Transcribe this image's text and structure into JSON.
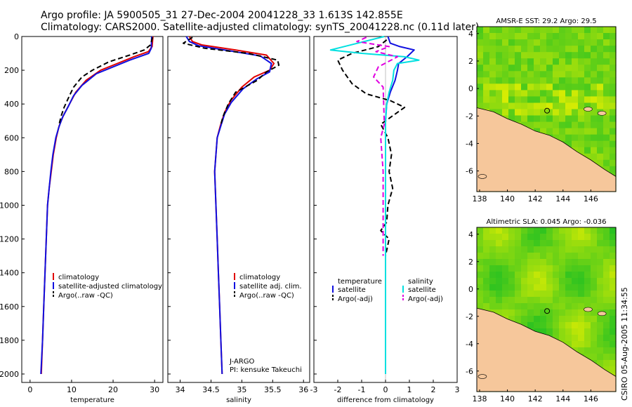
{
  "header": {
    "line1": "Argo profile: JA 5900505_31 27-Dec-2004 20041228_33 1.613S 142.855E",
    "line2": "Climatology: CARS2000. Satellite-adjusted climatology: synTS_20041228.nc (0.11d later)"
  },
  "footer": {
    "stamp": "CSIRO 05-Aug-2005 11:34:55"
  },
  "colors": {
    "climatology": "#e00000",
    "satellite": "#1010e0",
    "argo": "#000000",
    "salinity_satellite": "#00e0e0",
    "salinity_argo": "#e000e0",
    "land": "#f6c79b",
    "sea_green": "#22c022",
    "sea_yellow": "#e8f000"
  },
  "chart_data": [
    {
      "type": "line",
      "name": "temperature",
      "xlabel": "temperature",
      "ylabel": "",
      "xlim": [
        -2,
        32
      ],
      "ylim": [
        2050,
        0
      ],
      "xticks": [
        0,
        10,
        20,
        30
      ],
      "yticks": [
        0,
        200,
        400,
        600,
        800,
        1000,
        1200,
        1400,
        1600,
        1800,
        2000
      ],
      "legend": [
        "climatology",
        "satellite-adjusted climatology",
        "Argo(..raw -QC)"
      ],
      "series": [
        {
          "name": "climatology",
          "style": "solid",
          "points": [
            [
              29.6,
              0
            ],
            [
              29.4,
              60
            ],
            [
              28.5,
              90
            ],
            [
              25,
              120
            ],
            [
              21,
              160
            ],
            [
              17,
              200
            ],
            [
              13.5,
              260
            ],
            [
              11,
              330
            ],
            [
              9.5,
              400
            ],
            [
              8,
              470
            ],
            [
              7,
              530
            ],
            [
              6.3,
              600
            ],
            [
              5.6,
              700
            ],
            [
              5.1,
              800
            ],
            [
              4.6,
              900
            ],
            [
              4.2,
              1000
            ],
            [
              3.9,
              1200
            ],
            [
              3.6,
              1400
            ],
            [
              3.3,
              1600
            ],
            [
              3,
              1800
            ],
            [
              2.7,
              2000
            ]
          ]
        },
        {
          "name": "satellite-adjusted climatology",
          "style": "solid",
          "points": [
            [
              29.3,
              0
            ],
            [
              29.2,
              70
            ],
            [
              28.6,
              100
            ],
            [
              24,
              140
            ],
            [
              20,
              180
            ],
            [
              16,
              220
            ],
            [
              12.5,
              290
            ],
            [
              10.5,
              350
            ],
            [
              9.3,
              410
            ],
            [
              7.8,
              480
            ],
            [
              6.9,
              540
            ],
            [
              6.2,
              600
            ],
            [
              5.5,
              700
            ],
            [
              5,
              800
            ],
            [
              4.6,
              900
            ],
            [
              4.2,
              1000
            ],
            [
              3.9,
              1200
            ],
            [
              3.6,
              1400
            ],
            [
              3.3,
              1600
            ],
            [
              3,
              1800
            ],
            [
              2.6,
              2000
            ]
          ]
        },
        {
          "name": "Argo(..raw -QC)",
          "style": "dashed",
          "points": [
            [
              29.5,
              5
            ],
            [
              29,
              50
            ],
            [
              27.5,
              80
            ],
            [
              24,
              110
            ],
            [
              19,
              150
            ],
            [
              15,
              200
            ],
            [
              12.5,
              240
            ],
            [
              10.5,
              300
            ],
            [
              9.5,
              350
            ],
            [
              8.2,
              420
            ],
            [
              7.5,
              470
            ],
            [
              7,
              520
            ]
          ]
        }
      ]
    },
    {
      "type": "line",
      "name": "salinity",
      "xlabel": "salinity",
      "ylabel": "",
      "xlim": [
        33.8,
        36.1
      ],
      "ylim": [
        2050,
        0
      ],
      "xticks": [
        34,
        34.5,
        35,
        35.5,
        36
      ],
      "yticks": [
        0,
        200,
        400,
        600,
        800,
        1000,
        1200,
        1400,
        1600,
        1800,
        2000
      ],
      "legend": [
        "climatology",
        "satellite adj. clim.",
        "Argo(..raw -QC)"
      ],
      "annotations": [
        "J-ARGO",
        "PI: kensuke Takeuchi"
      ],
      "series": [
        {
          "name": "climatology",
          "style": "solid",
          "points": [
            [
              34.15,
              0
            ],
            [
              34.2,
              30
            ],
            [
              34.35,
              50
            ],
            [
              34.9,
              80
            ],
            [
              35.4,
              110
            ],
            [
              35.52,
              160
            ],
            [
              35.45,
              200
            ],
            [
              35.2,
              240
            ],
            [
              35,
              300
            ],
            [
              34.82,
              380
            ],
            [
              34.72,
              450
            ],
            [
              34.65,
              530
            ],
            [
              34.6,
              600
            ],
            [
              34.58,
              700
            ],
            [
              34.56,
              800
            ],
            [
              34.57,
              900
            ],
            [
              34.58,
              1000
            ],
            [
              34.6,
              1200
            ],
            [
              34.62,
              1400
            ],
            [
              34.64,
              1600
            ],
            [
              34.66,
              1800
            ],
            [
              34.68,
              2000
            ]
          ]
        },
        {
          "name": "satellite adj. clim.",
          "style": "solid",
          "points": [
            [
              34.1,
              0
            ],
            [
              34.15,
              30
            ],
            [
              34.3,
              55
            ],
            [
              34.8,
              85
            ],
            [
              35.3,
              115
            ],
            [
              35.48,
              160
            ],
            [
              35.45,
              210
            ],
            [
              35.25,
              250
            ],
            [
              35.02,
              310
            ],
            [
              34.83,
              390
            ],
            [
              34.72,
              460
            ],
            [
              34.65,
              540
            ],
            [
              34.6,
              600
            ],
            [
              34.58,
              700
            ],
            [
              34.56,
              800
            ],
            [
              34.57,
              900
            ],
            [
              34.58,
              1000
            ],
            [
              34.6,
              1200
            ],
            [
              34.62,
              1400
            ],
            [
              34.64,
              1600
            ],
            [
              34.66,
              1800
            ],
            [
              34.68,
              2000
            ]
          ]
        },
        {
          "name": "Argo(..raw -QC)",
          "style": "dashed",
          "points": [
            [
              34.2,
              5
            ],
            [
              34.05,
              40
            ],
            [
              34.4,
              70
            ],
            [
              35.1,
              100
            ],
            [
              35.58,
              140
            ],
            [
              35.6,
              170
            ],
            [
              35.4,
              210
            ],
            [
              35.25,
              260
            ],
            [
              34.9,
              330
            ],
            [
              34.78,
              400
            ],
            [
              34.7,
              470
            ],
            [
              34.66,
              520
            ]
          ]
        }
      ]
    },
    {
      "type": "line",
      "name": "difference",
      "xlabel": "difference from climatology",
      "ylabel": "",
      "xlim": [
        -3,
        3
      ],
      "ylim": [
        2050,
        0
      ],
      "xticks": [
        -3,
        -2,
        -1,
        0,
        1,
        2,
        3
      ],
      "yticks": [
        0,
        200,
        400,
        600,
        800,
        1000,
        1200,
        1400,
        1600,
        1800,
        2000
      ],
      "legend_temperature": {
        "title": "temperature",
        "items": [
          "satellite",
          "Argo(-adj)"
        ]
      },
      "legend_salinity": {
        "title": "salinity",
        "items": [
          "satellite",
          "Argo(-adj)"
        ]
      },
      "series": [
        {
          "name": "temperature satellite",
          "style": "solid",
          "points": [
            [
              0.1,
              0
            ],
            [
              0.2,
              40
            ],
            [
              0.6,
              60
            ],
            [
              1.2,
              80
            ],
            [
              0.9,
              120
            ],
            [
              0.55,
              160
            ],
            [
              0.5,
              200
            ],
            [
              0.4,
              260
            ],
            [
              0.2,
              330
            ],
            [
              0.05,
              400
            ],
            [
              0,
              500
            ],
            [
              0,
              2000
            ]
          ]
        },
        {
          "name": "temperature Argo(-adj)",
          "style": "dashed",
          "points": [
            [
              0.05,
              20
            ],
            [
              -0.3,
              60
            ],
            [
              -1.4,
              100
            ],
            [
              -2,
              140
            ],
            [
              -1.8,
              200
            ],
            [
              -1.4,
              280
            ],
            [
              -0.8,
              340
            ],
            [
              0.2,
              380
            ],
            [
              0.8,
              420
            ],
            [
              0.3,
              470
            ],
            [
              -0.2,
              520
            ],
            [
              0.1,
              600
            ],
            [
              0.25,
              700
            ],
            [
              0.15,
              800
            ],
            [
              0.3,
              900
            ],
            [
              0.1,
              1000
            ],
            [
              0.05,
              1100
            ],
            [
              -0.2,
              1150
            ],
            [
              0.15,
              1200
            ],
            [
              0,
              1300
            ]
          ]
        },
        {
          "name": "salinity satellite",
          "style": "solid",
          "points": [
            [
              -0.05,
              0
            ],
            [
              -2.3,
              80
            ],
            [
              -1,
              100
            ],
            [
              0.8,
              120
            ],
            [
              1.4,
              140
            ],
            [
              0.5,
              160
            ],
            [
              0.35,
              200
            ],
            [
              0.3,
              260
            ],
            [
              0.15,
              330
            ],
            [
              0.05,
              400
            ],
            [
              0,
              500
            ],
            [
              0,
              2000
            ]
          ]
        },
        {
          "name": "salinity Argo(-adj)",
          "style": "dashed",
          "points": [
            [
              -0.8,
              5
            ],
            [
              -1.2,
              30
            ],
            [
              0.15,
              60
            ],
            [
              -0.4,
              90
            ],
            [
              0.5,
              120
            ],
            [
              -0.3,
              180
            ],
            [
              -0.5,
              240
            ],
            [
              -0.1,
              300
            ],
            [
              -0.05,
              520
            ],
            [
              -0.2,
              600
            ],
            [
              -0.15,
              700
            ],
            [
              -0.1,
              800
            ],
            [
              -0.1,
              1000
            ],
            [
              -0.1,
              1300
            ]
          ]
        }
      ]
    },
    {
      "type": "heatmap",
      "name": "sst_map",
      "title": "AMSR-E SST: 29.2 Argo: 29.5",
      "xlim": [
        137.8,
        147.8
      ],
      "ylim": [
        -7.5,
        4.5
      ],
      "xticks": [
        138,
        140,
        142,
        144,
        146
      ],
      "yticks": [
        -6,
        -4,
        -2,
        0,
        2,
        4
      ],
      "argo_position": [
        142.855,
        -1.613
      ]
    },
    {
      "type": "heatmap",
      "name": "sla_map",
      "title": "Altimetric SLA: 0.045 Argo: -0.036",
      "xlim": [
        137.8,
        147.8
      ],
      "ylim": [
        -7.5,
        4.5
      ],
      "xticks": [
        138,
        140,
        142,
        144,
        146
      ],
      "yticks": [
        -6,
        -4,
        -2,
        0,
        2,
        4
      ],
      "argo_position": [
        142.855,
        -1.613
      ]
    }
  ]
}
